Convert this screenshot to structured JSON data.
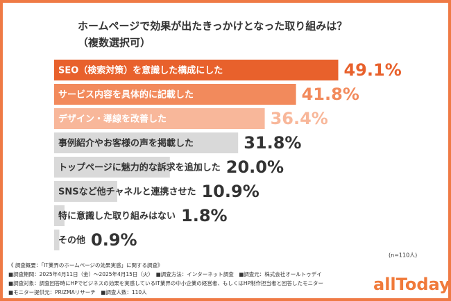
{
  "chart_data": {
    "type": "bar",
    "orientation": "horizontal",
    "title": "ホームページで効果が出たきっかけとなった取り組みは？",
    "subtitle": "（複数選択可）",
    "categories": [
      "SEO（検索対策）を意識した構成にした",
      "サービス内容を具体的に記載した",
      "デザイン・導線を改善した",
      "事例紹介やお客様の声を掲載した",
      "トップページに魅力的な訴求を追加した",
      "SNSなど他チャネルと連携させた",
      "特に意識した取り組みはない",
      "その他"
    ],
    "values": [
      49.1,
      41.8,
      36.4,
      31.8,
      20.0,
      10.9,
      1.8,
      0.9
    ],
    "value_labels": [
      "49.1%",
      "41.8%",
      "36.4%",
      "31.8%",
      "20.0%",
      "10.9%",
      "1.8%",
      "0.9%"
    ],
    "colors": [
      "#e8612c",
      "#f28a5c",
      "#f8b79a",
      "#d9d9d9",
      "#d9d9d9",
      "#d9d9d9",
      "#d9d9d9",
      "#d9d9d9"
    ],
    "xlim": [
      0,
      50
    ],
    "sample_note": "(n=110人)",
    "notes": [
      "《 調査概要：「IT業界のホームページの効果実感」に関する調査》",
      "■調査期間：2025年4月11日（金）～2025年4月15日（火）　■調査方法：インターネット調査　■調査元：株式会社オールトゥデイ",
      "■調査対象：調査回答時にHPでビジネスの効果を実感しているIT業界の中小企業の経営者、もしくはHP制作担当者と回答したモニター",
      "■モニター提供元：PRIZMAリサーチ　■調査人数：110人"
    ],
    "logo": "allToday"
  }
}
